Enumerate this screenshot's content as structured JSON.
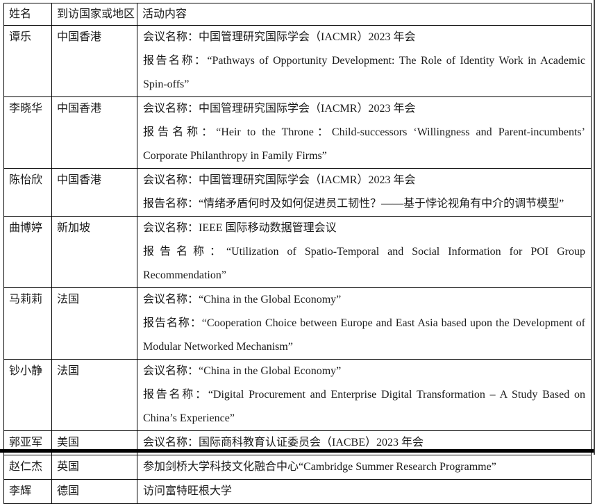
{
  "page": {
    "background_color": "#ffffff",
    "border_color": "#000000",
    "text_color": "#1a1a1a"
  },
  "table": {
    "headers": [
      "姓名",
      "到访国家或地区",
      "活动内容"
    ],
    "rows": [
      {
        "name": "谭乐",
        "destination": "中国香港",
        "lines": [
          "会议名称：中国管理研究国际学会（IACMR）2023 年会",
          "报告名称：“Pathways of Opportunity Development: The Role of Identity Work in Academic Spin-offs”"
        ]
      },
      {
        "name": "李晓华",
        "destination": "中国香港",
        "lines": [
          "会议名称：中国管理研究国际学会（IACMR）2023 年会",
          "报告名称：“Heir to the Throne：Child-successors ‘Willingness and Parent-incumbents’ Corporate Philanthropy in Family Firms”"
        ]
      },
      {
        "name": "陈怡欣",
        "destination": "中国香港",
        "lines": [
          "会议名称：中国管理研究国际学会（IACMR）2023 年会",
          "报告名称：“情绪矛盾何时及如何促进员工韧性？——基于悖论视角有中介的调节模型”"
        ]
      },
      {
        "name": "曲博婷",
        "destination": "新加坡",
        "lines": [
          "会议名称：IEEE 国际移动数据管理会议",
          "报告名称：“Utilization of Spatio-Temporal and Social Information for POI Group Recommendation”"
        ]
      },
      {
        "name": "马莉莉",
        "destination": "法国",
        "lines": [
          "会议名称：“China in the Global Economy”",
          "报告名称：“Cooperation Choice between Europe and East Asia based upon the Development of Modular Networked Mechanism”"
        ]
      },
      {
        "name": "钞小静",
        "destination": "法国",
        "lines": [
          "会议名称：“China in the Global Economy”",
          "报告名称：“Digital Procurement and Enterprise Digital Transformation – A Study Based on China’s Experience”"
        ]
      },
      {
        "name": "郭亚军",
        "destination": "美国",
        "lines": [
          "会议名称：国际商科教育认证委员会（IACBE）2023 年会"
        ]
      },
      {
        "name": "赵仁杰",
        "destination": "英国",
        "lines": [
          "参加剑桥大学科技文化融合中心“Cambridge Summer Research Programme”"
        ]
      },
      {
        "name": "李辉",
        "destination": "德国",
        "lines": [
          "访问富特旺根大学"
        ]
      }
    ]
  }
}
